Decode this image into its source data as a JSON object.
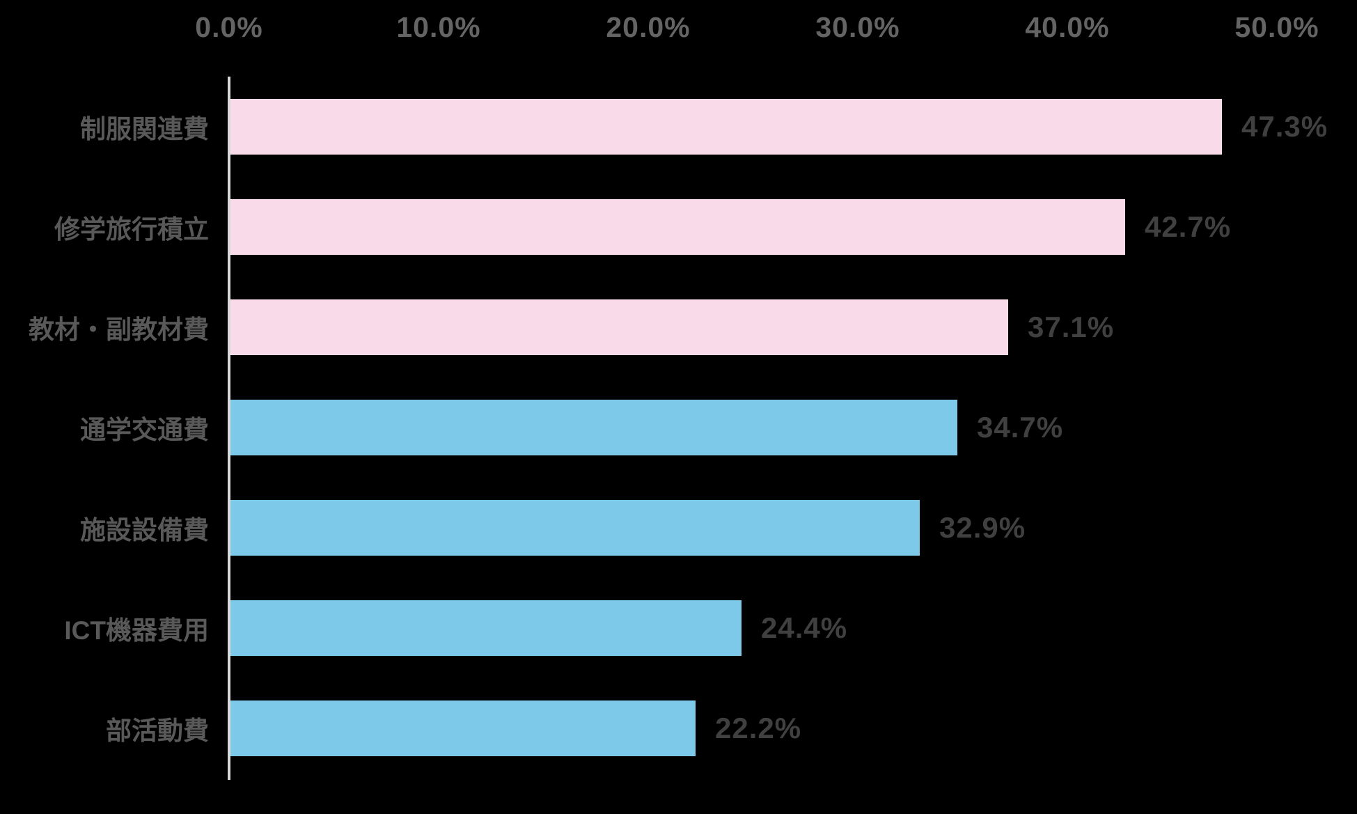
{
  "background_color": "#000000",
  "chart_data": {
    "type": "bar",
    "orientation": "horizontal",
    "title": "",
    "categories": [
      "制服関連費",
      "修学旅行積立",
      "教材・副教材費",
      "通学交通費",
      "施設設備費",
      "ICT機器費用",
      "部活動費"
    ],
    "values": [
      47.3,
      42.7,
      37.1,
      34.7,
      32.9,
      24.4,
      22.2
    ],
    "value_labels": [
      "47.3%",
      "42.7%",
      "37.1%",
      "34.7%",
      "32.9%",
      "24.4%",
      "22.2%"
    ],
    "bar_colors": [
      "#f8dae9",
      "#f8dae9",
      "#f8dae9",
      "#7cc9e9",
      "#7cc9e9",
      "#7cc9e9",
      "#7cc9e9"
    ],
    "series_colors": {
      "pink": "#f8dae9",
      "blue": "#7cc9e9"
    },
    "x_axis": {
      "position": "top",
      "min": 0,
      "max": 50,
      "tick_labels": [
        "0.0%",
        "10.0%",
        "20.0%",
        "30.0%",
        "40.0%",
        "50.0%"
      ],
      "grid": false
    },
    "legend": "none",
    "axis_line_color": "#d9d9d9",
    "tick_label_color": "#646464",
    "category_label_color": "#595959",
    "value_label_color": "#404040"
  }
}
